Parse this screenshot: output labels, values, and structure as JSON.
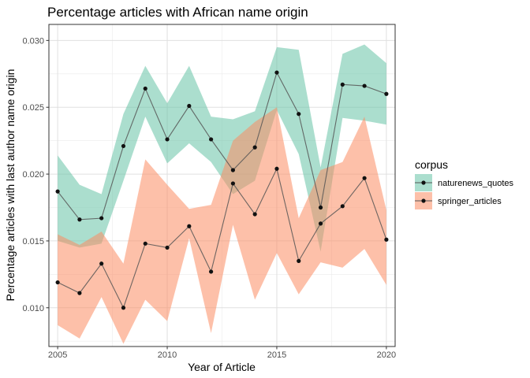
{
  "chart_data": {
    "type": "line",
    "title": "Percentage articles with African name origin",
    "xlabel": "Year of Article",
    "ylabel": "Percentage articles with last author name origin",
    "xlim": [
      2004.6,
      2020.4
    ],
    "ylim": [
      0.0071,
      0.0312
    ],
    "x_ticks": [
      2005,
      2010,
      2015,
      2020
    ],
    "x_tick_labels": [
      "2005",
      "2010",
      "2015",
      "2020"
    ],
    "y_ticks": [
      0.01,
      0.015,
      0.02,
      0.025,
      0.03
    ],
    "y_tick_labels": [
      "0.010",
      "0.015",
      "0.020",
      "0.025",
      "0.030"
    ],
    "grid": true,
    "legend": {
      "title": "corpus",
      "position": "right"
    },
    "x": [
      2005,
      2006,
      2007,
      2008,
      2009,
      2010,
      2011,
      2012,
      2013,
      2014,
      2015,
      2016,
      2017,
      2018,
      2019,
      2020
    ],
    "series": [
      {
        "name": "naturenews_quotes",
        "color": "#1b9e77",
        "ribbon_color": "#66c2a5",
        "values": [
          0.0187,
          0.0166,
          0.0167,
          0.0221,
          0.0264,
          0.0226,
          0.0251,
          0.0226,
          0.0203,
          0.022,
          0.0276,
          0.0245,
          0.0175,
          0.0267,
          0.0266,
          0.026
        ],
        "lower": [
          0.015,
          0.0145,
          0.0148,
          0.0195,
          0.0243,
          0.0208,
          0.0223,
          0.0209,
          0.0185,
          0.0195,
          0.0248,
          0.0215,
          0.0142,
          0.0242,
          0.024,
          0.0237
        ],
        "upper": [
          0.0214,
          0.0192,
          0.0185,
          0.0245,
          0.0281,
          0.0253,
          0.0281,
          0.0243,
          0.0241,
          0.0247,
          0.0295,
          0.0293,
          0.0205,
          0.029,
          0.0297,
          0.0283
        ]
      },
      {
        "name": "springer_articles",
        "color": "#d95f02",
        "ribbon_color": "#fc8d62",
        "values": [
          0.0119,
          0.0111,
          0.0133,
          0.01,
          0.0148,
          0.0145,
          0.0161,
          0.0127,
          0.0193,
          0.017,
          0.0204,
          0.0135,
          0.0163,
          0.0176,
          0.0197,
          0.0151
        ],
        "lower": [
          0.0087,
          0.0077,
          0.0108,
          0.0073,
          0.0106,
          0.009,
          0.0152,
          0.0081,
          0.0162,
          0.0106,
          0.0141,
          0.011,
          0.0134,
          0.013,
          0.0144,
          0.0117
        ],
        "upper": [
          0.0155,
          0.0147,
          0.0157,
          0.0133,
          0.0211,
          0.0192,
          0.0174,
          0.0177,
          0.0225,
          0.0239,
          0.025,
          0.0167,
          0.0203,
          0.0209,
          0.0243,
          0.0173
        ]
      }
    ]
  }
}
